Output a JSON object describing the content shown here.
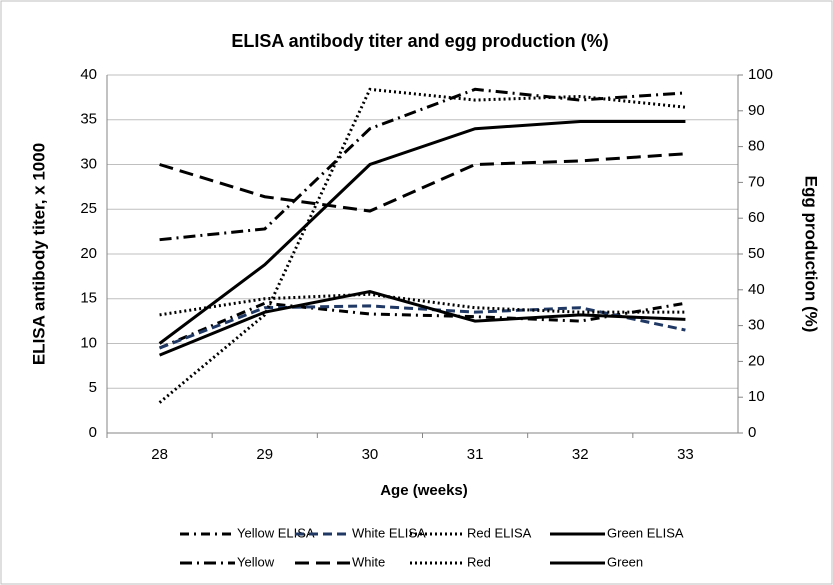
{
  "chart_data": {
    "type": "line",
    "title": "ELISA antibody titer and  egg production (%)",
    "xlabel": "Age (weeks)",
    "ylabel": "ELISA antibody titer, x 1000",
    "y2label": "Egg production (%)",
    "categories": [
      "28",
      "29",
      "30",
      "31",
      "32",
      "33"
    ],
    "ylim": [
      0,
      40
    ],
    "yticks": [
      0,
      5,
      10,
      15,
      20,
      25,
      30,
      35,
      40
    ],
    "y2lim": [
      0,
      100
    ],
    "y2ticks": [
      0,
      10,
      20,
      30,
      40,
      50,
      60,
      70,
      80,
      90,
      100
    ],
    "grid": true,
    "legend": "bottom",
    "series": [
      {
        "name": "Yellow ELISA",
        "color": "#000000",
        "dash": [
          9,
          5,
          2,
          5
        ],
        "values": [
          9.5,
          14.5,
          13.3,
          13,
          12.5,
          14.5
        ]
      },
      {
        "name": "White ELISA",
        "color": "#1f3864",
        "dash": [
          9,
          5
        ],
        "values": [
          9.5,
          14,
          14.2,
          13.5,
          14,
          11.5
        ]
      },
      {
        "name": "Red ELISA",
        "color": "#000000",
        "dash": [
          2,
          3
        ],
        "values": [
          13.2,
          15,
          15.5,
          14,
          13.5,
          13.5
        ]
      },
      {
        "name": "Green ELISA",
        "color": "#000000",
        "dash": [],
        "values": [
          8.7,
          13.5,
          15.8,
          12.5,
          13.2,
          12.7
        ]
      },
      {
        "name": "Yellow",
        "color": "#000000",
        "dash": [
          12,
          5,
          2,
          5
        ],
        "axis": "y2",
        "values": [
          54,
          57,
          85,
          96,
          93,
          95
        ]
      },
      {
        "name": "White",
        "color": "#000000",
        "dash": [
          14,
          7
        ],
        "axis": "y2",
        "values": [
          75,
          66,
          62,
          75,
          76,
          78
        ]
      },
      {
        "name": "Red",
        "color": "#000000",
        "dash": [
          2,
          3
        ],
        "axis": "y2",
        "values": [
          8.5,
          33,
          96,
          93,
          94,
          91
        ]
      },
      {
        "name": "Green",
        "color": "#000000",
        "dash": [],
        "axis": "y2",
        "values": [
          25,
          47,
          75,
          85,
          87,
          87
        ]
      }
    ]
  }
}
